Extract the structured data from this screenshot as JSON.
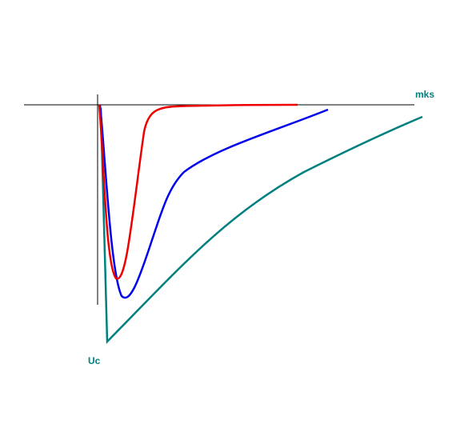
{
  "axes": {
    "x_label": "mks",
    "y_label": "Uc"
  }
}
